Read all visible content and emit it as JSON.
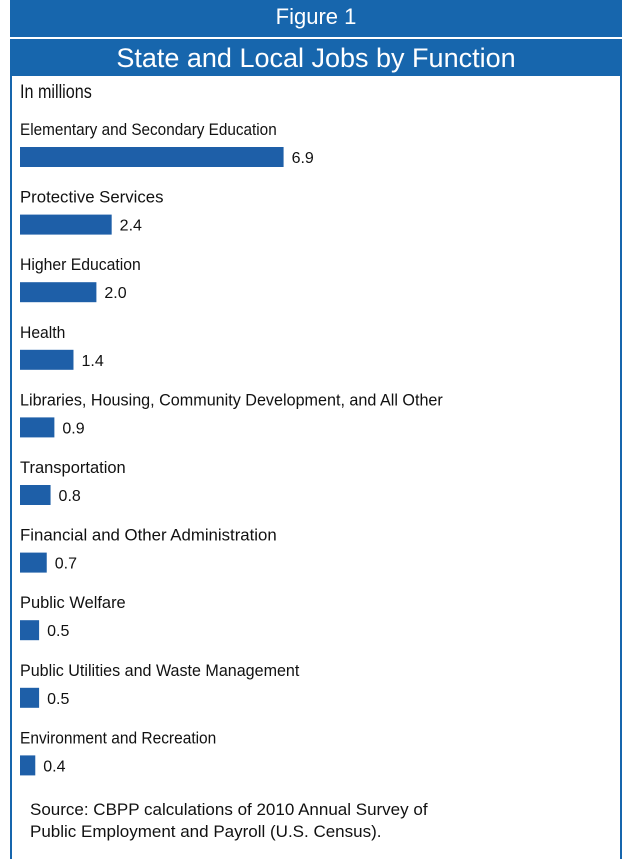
{
  "header": {
    "figure_label": "Figure 1",
    "title": "State and Local Jobs by Function"
  },
  "unit_label": "In millions",
  "source": {
    "line1": "Source: CBPP calculations of 2010 Annual Survey of",
    "line2": "Public Employment and Payroll (U.S. Census)."
  },
  "chart_data": {
    "type": "bar",
    "orientation": "horizontal",
    "title": "State and Local Jobs by Function",
    "unit": "In millions",
    "bar_color": "#1e5fa8",
    "categories": [
      "Elementary and Secondary Education",
      "Protective Services",
      "Higher Education",
      "Health",
      "Libraries, Housing, Community Development, and All Other",
      "Transportation",
      "Financial and Other Administration",
      "Public Welfare",
      "Public Utilities and Waste Management",
      "Environment and Recreation"
    ],
    "values": [
      6.9,
      2.4,
      2.0,
      1.4,
      0.9,
      0.8,
      0.7,
      0.5,
      0.5,
      0.4
    ],
    "value_labels": [
      "6.9",
      "2.4",
      "2.0",
      "1.4",
      "0.9",
      "0.8",
      "0.7",
      "0.5",
      "0.5",
      "0.4"
    ],
    "grid": false,
    "legend": "none"
  }
}
